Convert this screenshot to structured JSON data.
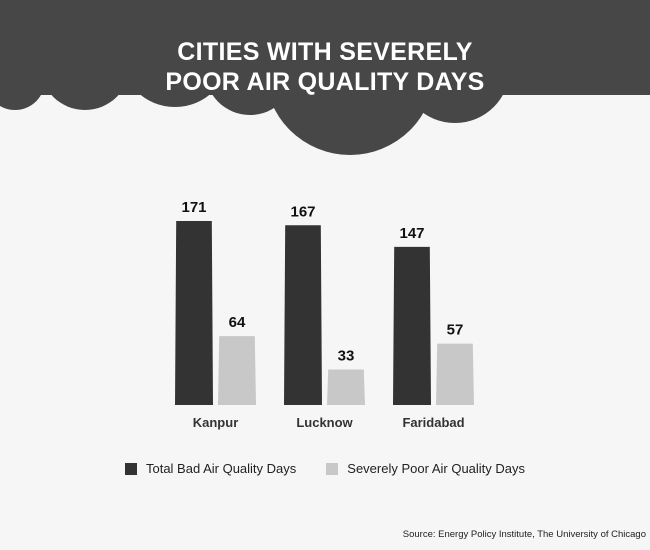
{
  "chart_data": {
    "type": "bar",
    "title": "CITIES WITH SEVERELY POOR AIR QUALITY DAYS",
    "title_lines": [
      "CITIES WITH SEVERELY",
      "POOR AIR QUALITY DAYS"
    ],
    "categories": [
      "Kanpur",
      "Lucknow",
      "Faridabad"
    ],
    "series": [
      {
        "name": "Total Bad Air Quality Days",
        "values": [
          171,
          167,
          147
        ],
        "color": "#333333"
      },
      {
        "name": "Severely Poor Air Quality Days",
        "values": [
          64,
          33,
          57
        ],
        "color": "#c8c8c8"
      }
    ],
    "ylim": [
      0,
      171
    ],
    "grid": false,
    "legend_position": "bottom"
  },
  "colors": {
    "background": "#f6f6f6",
    "header": "#474747",
    "title_text": "#ffffff"
  },
  "source": "Source: Energy Policy Institute, The University of Chicago"
}
